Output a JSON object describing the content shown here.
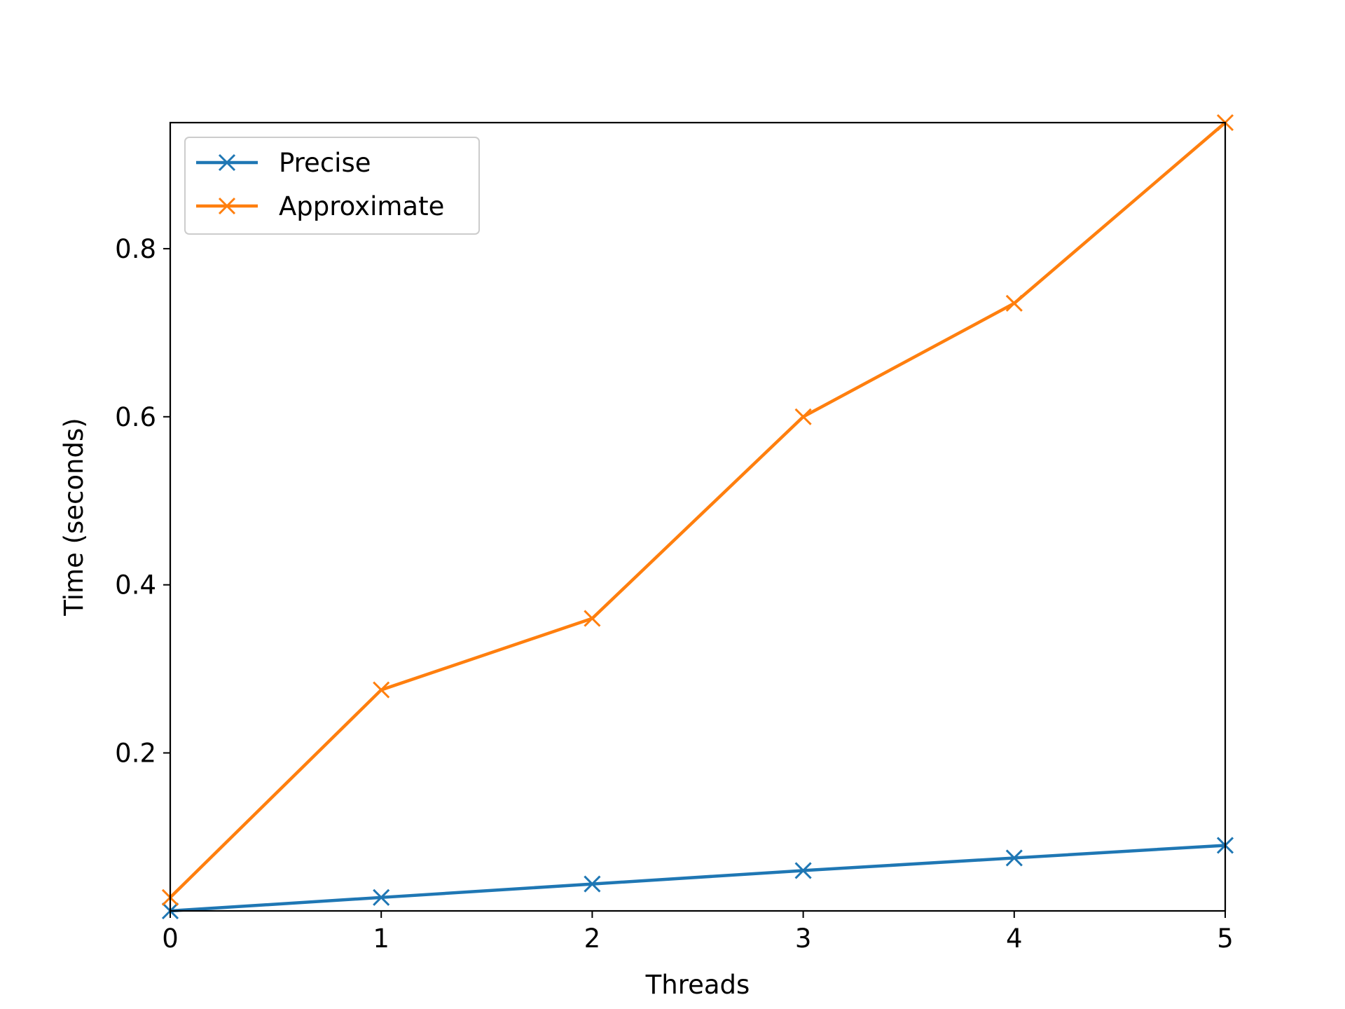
{
  "chart_data": {
    "type": "line",
    "title": "",
    "xlabel": "Threads",
    "ylabel": "Time (seconds)",
    "x": [
      0,
      1,
      2,
      3,
      4,
      5
    ],
    "xlim": [
      0,
      5
    ],
    "ylim": [
      0.012,
      0.95
    ],
    "xticks": [
      0,
      1,
      2,
      3,
      4,
      5
    ],
    "yticks": [
      0.2,
      0.4,
      0.6,
      0.8
    ],
    "xtick_labels": [
      "0",
      "1",
      "2",
      "3",
      "4",
      "5"
    ],
    "ytick_labels": [
      "0.2",
      "0.4",
      "0.6",
      "0.8"
    ],
    "grid": false,
    "legend_position": "upper-left",
    "marker": "x",
    "series": [
      {
        "name": "Precise",
        "color": "#1f77b4",
        "values": [
          0.012,
          0.028,
          0.044,
          0.06,
          0.075,
          0.09
        ]
      },
      {
        "name": "Approximate",
        "color": "#ff7f0e",
        "values": [
          0.028,
          0.275,
          0.36,
          0.6,
          0.735,
          0.95
        ]
      }
    ]
  }
}
